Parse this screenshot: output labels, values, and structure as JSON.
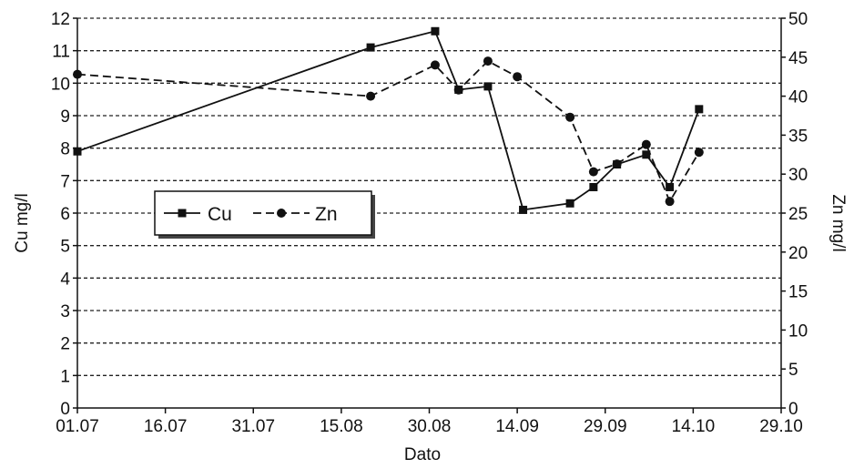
{
  "chart_data": {
    "type": "line",
    "xlabel": "Dato",
    "ylabel_left": "Cu mg/l",
    "ylabel_right": "Zn mg/l",
    "x_ticks": [
      "01.07",
      "16.07",
      "31.07",
      "15.08",
      "30.08",
      "14.09",
      "29.09",
      "14.10",
      "29.10"
    ],
    "y_left_ticks": [
      "0",
      "1",
      "2",
      "3",
      "4",
      "5",
      "6",
      "7",
      "8",
      "9",
      "10",
      "11",
      "12"
    ],
    "y_right_ticks": [
      "0",
      "5",
      "10",
      "15",
      "20",
      "25",
      "30",
      "35",
      "40",
      "45",
      "50"
    ],
    "ylim_left": [
      0,
      12
    ],
    "ylim_right": [
      0,
      50
    ],
    "grid": "horizontal dashed",
    "legend_placement": "left-middle",
    "series": [
      {
        "name": "Cu",
        "axis": "left",
        "style": "solid",
        "marker": "square",
        "color": "#111111",
        "points": [
          {
            "x": "01.07",
            "y": 7.9
          },
          {
            "x": "20.08",
            "y": 11.1
          },
          {
            "x": "31.08",
            "y": 11.6
          },
          {
            "x": "04.09",
            "y": 9.8
          },
          {
            "x": "09.09",
            "y": 9.9
          },
          {
            "x": "15.09",
            "y": 6.1
          },
          {
            "x": "23.09",
            "y": 6.3
          },
          {
            "x": "27.09",
            "y": 6.8
          },
          {
            "x": "01.10",
            "y": 7.5
          },
          {
            "x": "06.10",
            "y": 7.8
          },
          {
            "x": "10.10",
            "y": 6.8
          },
          {
            "x": "15.10",
            "y": 9.2
          }
        ]
      },
      {
        "name": "Zn",
        "axis": "right",
        "style": "dashed",
        "marker": "circle",
        "color": "#111111",
        "points": [
          {
            "x": "01.07",
            "y": 42.8
          },
          {
            "x": "20.08",
            "y": 40
          },
          {
            "x": "31.08",
            "y": 44
          },
          {
            "x": "04.09",
            "y": 40.8
          },
          {
            "x": "09.09",
            "y": 44.5
          },
          {
            "x": "14.09",
            "y": 42.5
          },
          {
            "x": "23.09",
            "y": 37.3
          },
          {
            "x": "27.09",
            "y": 30.3
          },
          {
            "x": "01.10",
            "y": 31.3
          },
          {
            "x": "06.10",
            "y": 33.8
          },
          {
            "x": "10.10",
            "y": 26.5
          },
          {
            "x": "15.10",
            "y": 32.8
          }
        ]
      }
    ]
  }
}
